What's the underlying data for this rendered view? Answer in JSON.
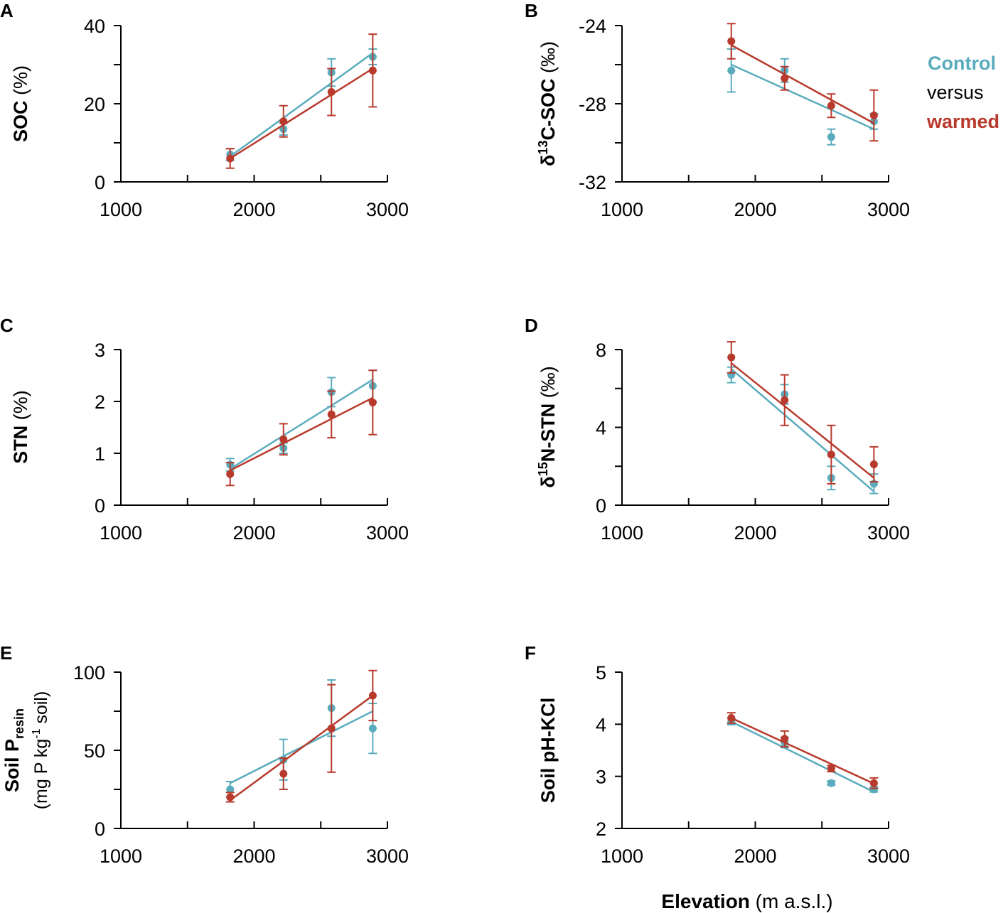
{
  "x_axis": {
    "label_bold": "Elevation",
    "label_rest": " (m a.s.l.)"
  },
  "legend": {
    "control": "Control",
    "versus": "versus",
    "warmed": "warmed"
  },
  "colors": {
    "control": "#5aacbd",
    "warmed": "#b83a2c",
    "axis": "#000000"
  },
  "chart_data": [
    {
      "id": "A",
      "panel_letter": "A",
      "type": "scatter",
      "ylabel": {
        "bold": "SOC",
        "rest": " (%)"
      },
      "xlim": [
        1000,
        3000
      ],
      "ylim": [
        0,
        40
      ],
      "xticks": [
        1000,
        2000,
        3000
      ],
      "yticks": [
        0,
        20,
        40
      ],
      "yminor": [
        10,
        30
      ],
      "x": [
        1820,
        2220,
        2580,
        2890
      ],
      "control": {
        "values": [
          7,
          13.5,
          28,
          32
        ],
        "err": [
          1.5,
          1.5,
          3.5,
          2
        ],
        "fit": [
          [
            1820,
            6.5
          ],
          [
            2890,
            33
          ]
        ]
      },
      "warmed": {
        "values": [
          6,
          15.5,
          23,
          28.5
        ],
        "err": [
          2.5,
          4,
          6,
          9.3
        ],
        "fit": [
          [
            1820,
            6
          ],
          [
            2890,
            29
          ]
        ]
      }
    },
    {
      "id": "B",
      "panel_letter": "B",
      "type": "scatter",
      "ylabel": {
        "bold": "δ13C-SOC",
        "rest": " (‰)"
      },
      "xlim": [
        1000,
        3000
      ],
      "ylim": [
        -32,
        -24
      ],
      "xticks": [
        1000,
        2000,
        3000
      ],
      "yticks": [
        -32,
        -28,
        -24
      ],
      "yminor": [
        -30,
        -26
      ],
      "x": [
        1820,
        2220,
        2570,
        2890
      ],
      "control": {
        "values": [
          -26.3,
          -26.3,
          -29.7,
          -28.9
        ],
        "err": [
          1.1,
          0.6,
          0.4,
          0.4
        ],
        "fit": [
          [
            1820,
            -26
          ],
          [
            2890,
            -29.3
          ]
        ]
      },
      "warmed": {
        "values": [
          -24.8,
          -26.7,
          -28.1,
          -28.6
        ],
        "err": [
          0.9,
          0.6,
          0.6,
          1.3
        ],
        "fit": [
          [
            1820,
            -25
          ],
          [
            2890,
            -29
          ]
        ]
      }
    },
    {
      "id": "C",
      "panel_letter": "C",
      "type": "scatter",
      "ylabel": {
        "bold": "STN",
        "rest": " (%)"
      },
      "xlim": [
        1000,
        3000
      ],
      "ylim": [
        0,
        3
      ],
      "xticks": [
        1000,
        2000,
        3000
      ],
      "yticks": [
        0,
        1,
        2,
        3
      ],
      "yminor": [],
      "x": [
        1820,
        2220,
        2580,
        2890
      ],
      "control": {
        "values": [
          0.78,
          1.1,
          2.18,
          2.3
        ],
        "err": [
          0.12,
          0.1,
          0.28,
          0.3
        ],
        "fit": [
          [
            1820,
            0.7
          ],
          [
            2890,
            2.42
          ]
        ]
      },
      "warmed": {
        "values": [
          0.6,
          1.27,
          1.75,
          1.98
        ],
        "err": [
          0.22,
          0.3,
          0.45,
          0.62
        ],
        "fit": [
          [
            1820,
            0.67
          ],
          [
            2890,
            2.07
          ]
        ]
      }
    },
    {
      "id": "D",
      "panel_letter": "D",
      "type": "scatter",
      "ylabel": {
        "bold": "δ15N-STN",
        "rest": " (‰)"
      },
      "xlim": [
        1000,
        3000
      ],
      "ylim": [
        0,
        8
      ],
      "xticks": [
        1000,
        2000,
        3000
      ],
      "yticks": [
        0,
        4,
        8
      ],
      "yminor": [
        2,
        6
      ],
      "x": [
        1820,
        2220,
        2570,
        2890
      ],
      "control": {
        "values": [
          6.7,
          5.7,
          1.4,
          1.1
        ],
        "err": [
          0.4,
          0.5,
          0.6,
          0.5
        ],
        "fit": [
          [
            1820,
            7
          ],
          [
            2890,
            0.7
          ]
        ]
      },
      "warmed": {
        "values": [
          7.6,
          5.4,
          2.6,
          2.1
        ],
        "err": [
          0.8,
          1.3,
          1.5,
          0.9
        ],
        "fit": [
          [
            1820,
            7.3
          ],
          [
            2890,
            1.4
          ]
        ]
      }
    },
    {
      "id": "E",
      "panel_letter": "E",
      "type": "scatter",
      "ylabel": {
        "line1_bold": "Soil P",
        "line1_sub": "resin",
        "line2": "(mg P kg",
        "line2_sup": "-1",
        "line2_end": " soil)"
      },
      "xlim": [
        1000,
        3000
      ],
      "ylim": [
        0,
        100
      ],
      "xticks": [
        1000,
        2000,
        3000
      ],
      "yticks": [
        0,
        50,
        100
      ],
      "yminor": [
        25,
        75
      ],
      "x": [
        1820,
        2220,
        2580,
        2890
      ],
      "control": {
        "values": [
          25,
          44,
          77,
          64
        ],
        "err": [
          5,
          13,
          18,
          16
        ],
        "fit": [
          [
            1820,
            29
          ],
          [
            2890,
            75
          ]
        ]
      },
      "warmed": {
        "values": [
          20,
          35,
          64,
          85
        ],
        "err": [
          3,
          10,
          28,
          16
        ],
        "fit": [
          [
            1820,
            18
          ],
          [
            2890,
            85
          ]
        ]
      }
    },
    {
      "id": "F",
      "panel_letter": "F",
      "type": "scatter",
      "ylabel": {
        "bold": "Soil pH-KCl",
        "rest": ""
      },
      "xlim": [
        1000,
        3000
      ],
      "ylim": [
        2,
        5
      ],
      "xticks": [
        1000,
        2000,
        3000
      ],
      "yticks": [
        2,
        3,
        4,
        5
      ],
      "yminor": [],
      "x": [
        1820,
        2220,
        2570,
        2890
      ],
      "control": {
        "values": [
          4.05,
          3.65,
          2.87,
          2.75
        ],
        "err": [
          0.06,
          0.1,
          0.04,
          0.05
        ],
        "fit": [
          [
            1820,
            4.05
          ],
          [
            2890,
            2.7
          ]
        ]
      },
      "warmed": {
        "values": [
          4.12,
          3.72,
          3.15,
          2.87
        ],
        "err": [
          0.1,
          0.15,
          0.06,
          0.1
        ],
        "fit": [
          [
            1820,
            4.12
          ],
          [
            2890,
            2.86
          ]
        ]
      }
    }
  ]
}
